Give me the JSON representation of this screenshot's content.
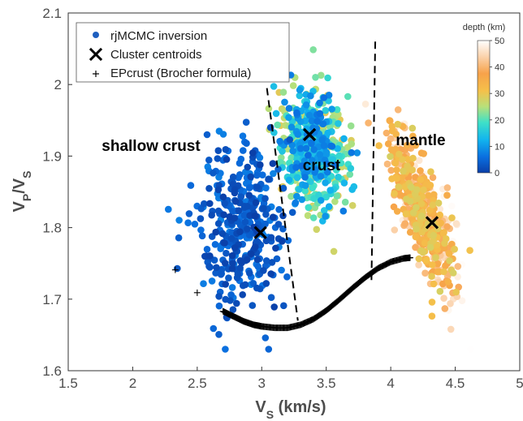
{
  "chart_data": {
    "type": "scatter",
    "xlabel": "V",
    "xlabel_sub": "S",
    "xlabel_unit": " (km/s)",
    "ylabel_main": "V",
    "ylabel_sub1": "P",
    "ylabel_slash": "/V",
    "ylabel_sub2": "S",
    "xlim": [
      1.5,
      5
    ],
    "ylim": [
      1.6,
      2.1
    ],
    "x_ticks": [
      "1.5",
      "2",
      "2.5",
      "3",
      "3.5",
      "4",
      "4.5",
      "5"
    ],
    "y_ticks": [
      "1.6",
      "1.7",
      "1.8",
      "1.9",
      "2",
      "2.1"
    ],
    "grid": false,
    "legend_position": "top-left",
    "legend": [
      {
        "label": "rjMCMC inversion",
        "marker": "dot",
        "color": "#1f5fbf"
      },
      {
        "label": "Cluster centroids",
        "marker": "x",
        "color": "#000000"
      },
      {
        "label": "EPcrust (Brocher formula)",
        "marker": "plus",
        "color": "#000000"
      }
    ],
    "colorbar": {
      "label": "depth (km)",
      "ticks": [
        "0",
        "10",
        "20",
        "30",
        "40",
        "50"
      ],
      "range": [
        0,
        50
      ],
      "colormap": [
        "#0a3fa8",
        "#0a6fe0",
        "#12b4ee",
        "#3ee0c8",
        "#b8e07a",
        "#f5c04a",
        "#f7a24a",
        "#fbd3ad",
        "#ffffff"
      ]
    },
    "region_labels": [
      "shallow crust",
      "crust",
      "mantle"
    ],
    "boundaries": [
      {
        "name": "shallow-crust / crust",
        "x": [
          3.04,
          3.28
        ],
        "y": [
          1.995,
          1.67
        ]
      },
      {
        "name": "crust / mantle",
        "x": [
          3.88,
          3.85
        ],
        "y": [
          2.06,
          1.72
        ]
      }
    ],
    "centroids": [
      {
        "x": 2.99,
        "y": 1.793
      },
      {
        "x": 3.37,
        "y": 1.93
      },
      {
        "x": 4.32,
        "y": 1.807
      }
    ],
    "epcrust_curve": {
      "x": [
        2.33,
        2.5,
        2.7,
        2.78,
        2.86,
        2.94,
        3.0,
        3.1,
        3.2,
        3.3,
        3.4,
        3.5,
        3.6,
        3.7,
        3.8,
        3.9,
        4.0,
        4.1,
        4.15
      ],
      "y": [
        1.741,
        1.709,
        1.683,
        1.676,
        1.669,
        1.664,
        1.662,
        1.66,
        1.66,
        1.664,
        1.672,
        1.684,
        1.699,
        1.715,
        1.73,
        1.743,
        1.752,
        1.757,
        1.758
      ]
    },
    "inversion_clusters": [
      {
        "name": "shallow crust",
        "x_center": 2.85,
        "x_spread": 0.28,
        "y_center": 1.8,
        "y_spread": 0.085,
        "depth_range": [
          0,
          8
        ],
        "count": 380
      },
      {
        "name": "crust",
        "x_center": 3.4,
        "x_spread": 0.22,
        "y_center": 1.91,
        "y_spread": 0.06,
        "depth_range": [
          6,
          30
        ],
        "count": 520
      },
      {
        "name": "mantle",
        "x_center": 4.25,
        "x_spread": 0.22,
        "y_center": 1.86,
        "y_spread": 0.06,
        "depth_range": [
          28,
          50
        ],
        "count": 560
      }
    ]
  }
}
